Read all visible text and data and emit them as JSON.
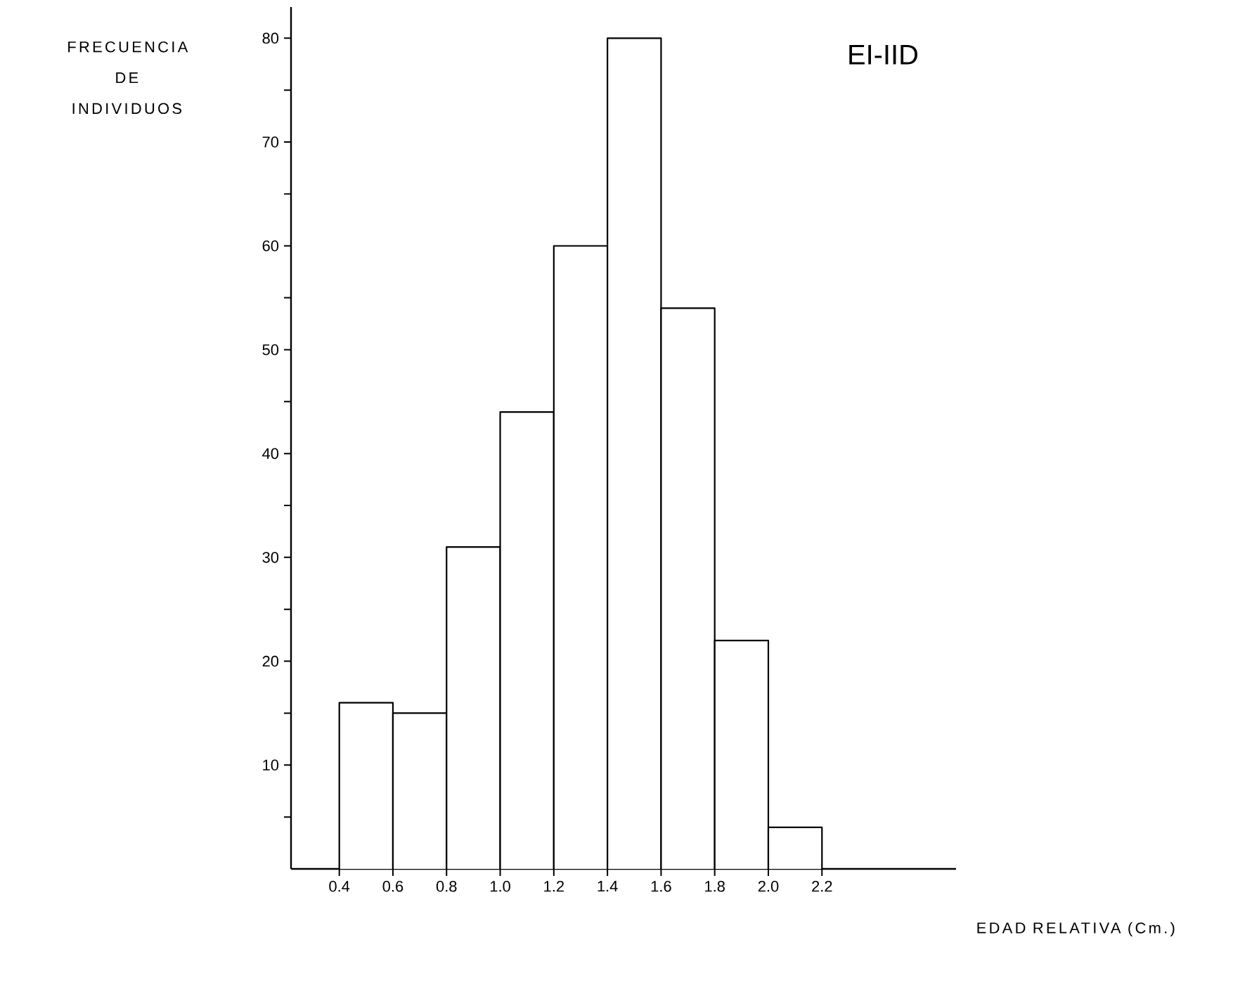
{
  "chart_data": {
    "type": "histogram",
    "title": "EI-IID",
    "xlabel": "EDAD RELATIVA (Cm.)",
    "ylabel": "FRECUENCIA DE INDIVIDUOS",
    "bins": [
      0.4,
      0.6,
      0.8,
      1.0,
      1.2,
      1.4,
      1.6,
      1.8,
      2.0,
      2.2
    ],
    "values": [
      16,
      15,
      31,
      44,
      60,
      80,
      54,
      22,
      4
    ],
    "color": "#000000",
    "xlim": [
      0.22,
      2.7
    ],
    "ylim": [
      0,
      83
    ],
    "xticks": [
      {
        "value": 0.4,
        "label": "0.4"
      },
      {
        "value": 0.6,
        "label": "0.6"
      },
      {
        "value": 0.8,
        "label": "0.8"
      },
      {
        "value": 1.0,
        "label": "1.0"
      },
      {
        "value": 1.2,
        "label": "1.2"
      },
      {
        "value": 1.4,
        "label": "1.4"
      },
      {
        "value": 1.6,
        "label": "1.6"
      },
      {
        "value": 1.8,
        "label": "1.8"
      },
      {
        "value": 2.0,
        "label": "2.0"
      },
      {
        "value": 2.2,
        "label": "2.2"
      }
    ],
    "yticks": [
      {
        "value": 5,
        "label": null
      },
      10,
      {
        "value": 15,
        "label": null
      },
      20,
      {
        "value": 25,
        "label": null
      },
      30,
      {
        "value": 35,
        "label": null
      },
      40,
      {
        "value": 45,
        "label": null
      },
      50,
      {
        "value": 55,
        "label": null
      },
      60,
      {
        "value": 65,
        "label": null
      },
      70,
      {
        "value": 75,
        "label": null
      },
      80
    ],
    "grid": false
  }
}
